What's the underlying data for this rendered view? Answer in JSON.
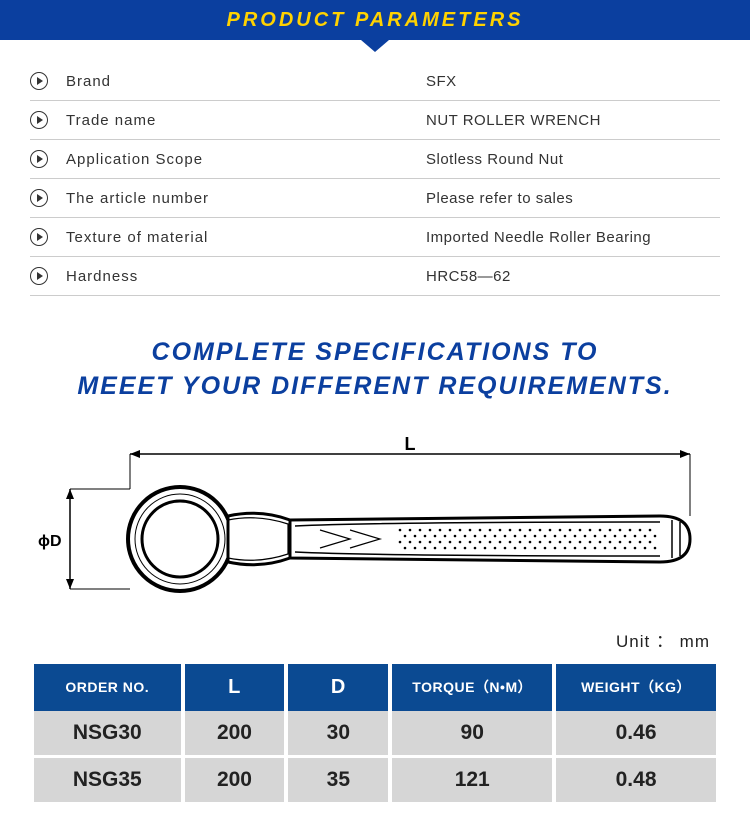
{
  "banner": {
    "title": "PRODUCT PARAMETERS"
  },
  "params": [
    {
      "label": "Brand",
      "value": "SFX"
    },
    {
      "label": "Trade name",
      "value": "NUT ROLLER WRENCH"
    },
    {
      "label": "Application Scope",
      "value": "Slotless Round Nut"
    },
    {
      "label": "The article number",
      "value": "Please refer to sales"
    },
    {
      "label": "Texture of material",
      "value": "Imported Needle Roller Bearing"
    },
    {
      "label": "Hardness",
      "value": "HRC58—62"
    }
  ],
  "spec_heading": {
    "line1": "COMPLETE SPECIFICATIONS TO",
    "line2": "MEEET YOUR DIFFERENT REQUIREMENTS."
  },
  "diagram": {
    "label_L": "L",
    "label_D": "ϕD"
  },
  "unit": "Unit ： mm",
  "spec_table": {
    "headers": [
      "ORDER NO.",
      "L",
      "D",
      "TORQUE（N•M）",
      "WEIGHT（KG）"
    ],
    "rows": [
      [
        "NSG30",
        "200",
        "30",
        "90",
        "0.46"
      ],
      [
        "NSG35",
        "200",
        "35",
        "121",
        "0.48"
      ]
    ]
  },
  "colors": {
    "brand_blue": "#0b3f9f",
    "accent_yellow": "#ffd200",
    "table_header": "#0b4a92",
    "table_cell": "#d6d6d6",
    "text": "#333333",
    "divider": "#cccccc"
  }
}
